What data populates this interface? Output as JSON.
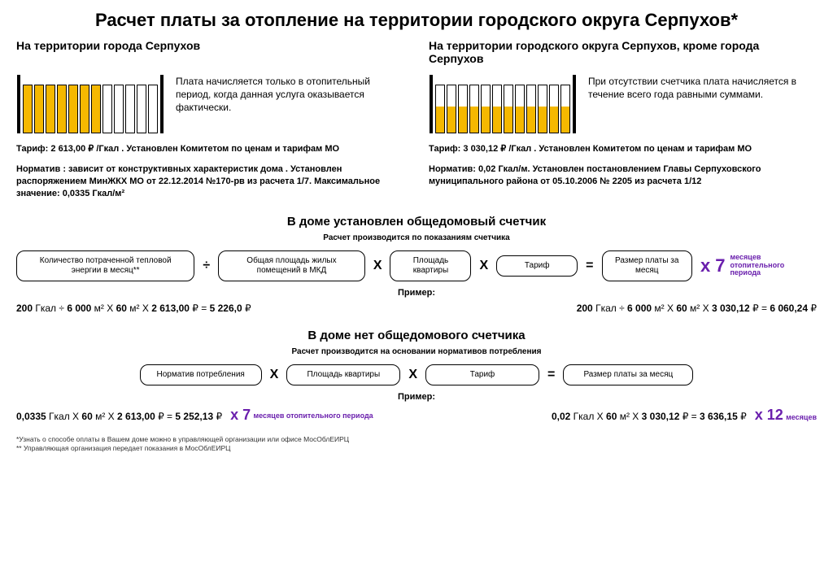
{
  "title": "Расчет платы за отопление на территории городского округа Серпухов*",
  "colors": {
    "accent": "#f5b800",
    "purple": "#6a1fad"
  },
  "left": {
    "heading": "На территории города Серпухов",
    "radiator": {
      "segments": 12,
      "fills_pct": [
        100,
        100,
        100,
        100,
        100,
        100,
        100,
        0,
        0,
        0,
        0,
        0
      ]
    },
    "desc": "Плата начисляется только в отопительный период, когда данная услуга оказывается фактически.",
    "tariff": "Тариф:   2 613,00 ₽ /Гкал . Установлен Комитетом по ценам и тарифам МО",
    "norm": "Норматив :   зависит от конструктивных характеристик дома . Установлен распоряжением МинЖКХ МО от 22.12.2014 №170-рв из расчета 1/7. Максимальное значение: 0,0335 Гкал/м²"
  },
  "right": {
    "heading": "На территории городского округа Серпухов, кроме города Серпухов",
    "radiator": {
      "segments": 12,
      "fills_pct": [
        55,
        55,
        55,
        55,
        55,
        55,
        55,
        55,
        55,
        55,
        55,
        55
      ]
    },
    "desc": "При отсутствии счетчика плата начисляется в течение всего года равными суммами.",
    "tariff": "Тариф:   3 030,12 ₽ /Гкал . Установлен Комитетом по ценам и тарифам МО",
    "norm": "Норматив:   0,02 Гкал/м.  Установлен постановлением Главы Серпуховского муниципального района  от 05.10.2006  № 2205 из расчета 1/12"
  },
  "section1": {
    "title": "В доме установлен общедомовый счетчик",
    "sub": "Расчет производится по показаниям счетчика",
    "boxes": [
      "Количество потраченной тепловой энергии в месяц**",
      "Общая площадь жилых помещений в МКД",
      "Площадь квартиры",
      "Тариф",
      "Размер платы за месяц"
    ],
    "ops": [
      "÷",
      "Х",
      "Х",
      "="
    ],
    "tail_x": "х",
    "tail_num": "7",
    "tail_label": "месяцев отопительного периода",
    "example_label": "Пример:",
    "ex_left": "200 Гкал ÷ 6 000 м² Х 60 м² Х 2 613,00 ₽ = 5 226,0 ₽",
    "ex_right": "200 Гкал ÷ 6 000 м² Х 60 м² Х 3 030,12 ₽ = 6 060,24 ₽"
  },
  "section2": {
    "title": "В доме нет общедомового счетчика",
    "sub": "Расчет производится на основании нормативов потребления",
    "boxes": [
      "Норматив потребления",
      "Площадь квартиры",
      "Тариф",
      "Размер платы за месяц"
    ],
    "ops": [
      "Х",
      "Х",
      "="
    ],
    "example_label": "Пример:",
    "ex_left_main": "0,0335 Гкал Х 60 м² Х 2 613,00 ₽ = 5 252,13 ₽",
    "ex_left_tail_x": "х 7",
    "ex_left_tail_lbl": "месяцев отопительного периода",
    "ex_right_main": "0,02 Гкал Х 60 м² Х 3 030,12 ₽ = 3 636,15 ₽",
    "ex_right_tail_x": "х 12",
    "ex_right_tail_lbl": "месяцев"
  },
  "footnotes": {
    "l1": "*Узнать о способе оплаты в Вашем доме можно в управляющей организации или офисе МосОблЕИРЦ",
    "l2": "** Управляющая организация передает  показания в МосОблЕИРЦ"
  }
}
